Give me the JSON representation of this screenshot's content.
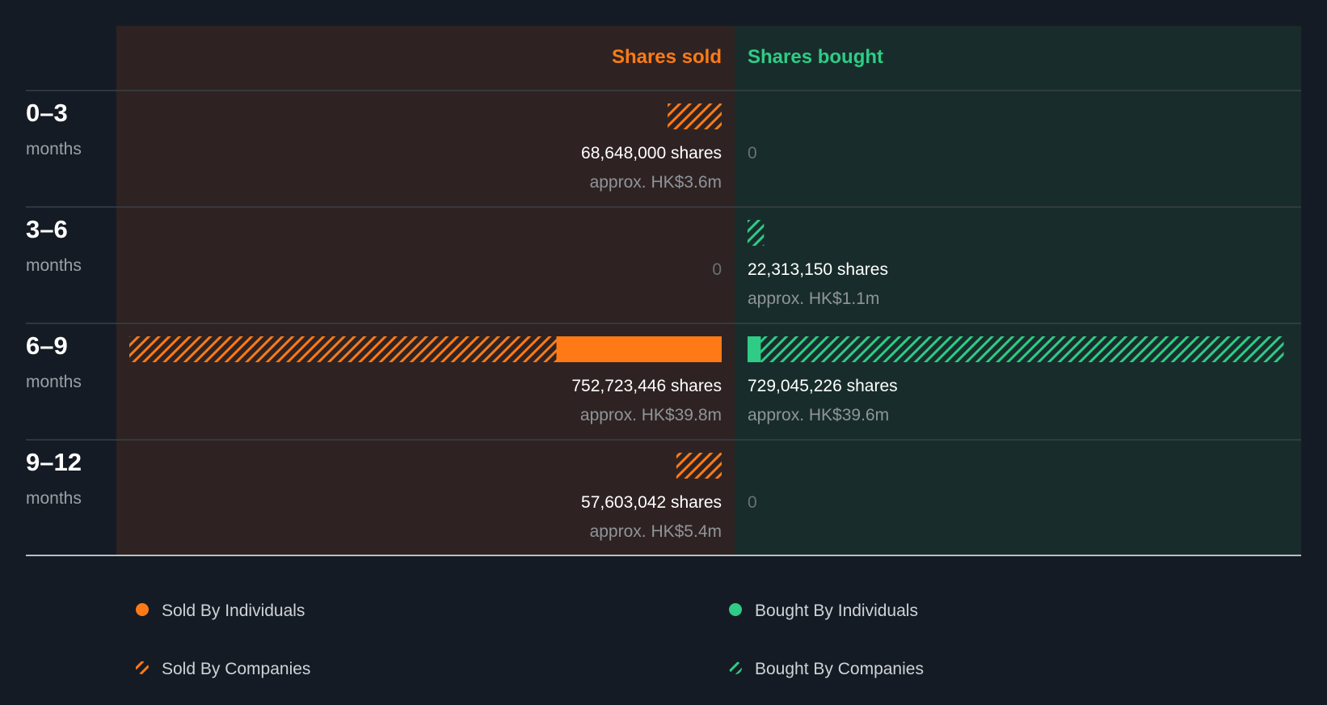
{
  "colors": {
    "background": "#151b24",
    "sold_panel": "#2e2322",
    "bought_panel": "#182d2b",
    "sold": "#ff7a16",
    "bought": "#2ecc86",
    "divider": "#3a4048",
    "baseline": "#b9bec4"
  },
  "chart_data": {
    "type": "bar",
    "layout": "diverging-horizontal",
    "headers": {
      "sold": "Shares sold",
      "bought": "Shares bought"
    },
    "categories": [
      {
        "period": "0–3",
        "unit": "months"
      },
      {
        "period": "3–6",
        "unit": "months"
      },
      {
        "period": "6–9",
        "unit": "months"
      },
      {
        "period": "9–12",
        "unit": "months"
      }
    ],
    "series": [
      {
        "name": "Sold By Individuals",
        "side": "sold",
        "pattern": "solid",
        "values": [
          0,
          0,
          210000000,
          0
        ]
      },
      {
        "name": "Sold By Companies",
        "side": "sold",
        "pattern": "hatched",
        "values": [
          68648000,
          0,
          542723446,
          57603042
        ]
      },
      {
        "name": "Bought By Individuals",
        "side": "bought",
        "pattern": "solid",
        "values": [
          0,
          0,
          18000000,
          0
        ]
      },
      {
        "name": "Bought By Companies",
        "side": "bought",
        "pattern": "hatched",
        "values": [
          0,
          22313150,
          711045226,
          0
        ]
      }
    ],
    "sold_totals": [
      {
        "shares": "68,648,000 shares",
        "approx": "approx. HK$3.6m"
      },
      {
        "shares": "0",
        "approx": ""
      },
      {
        "shares": "752,723,446 shares",
        "approx": "approx. HK$39.8m"
      },
      {
        "shares": "57,603,042 shares",
        "approx": "approx. HK$5.4m"
      }
    ],
    "bought_totals": [
      {
        "shares": "0",
        "approx": ""
      },
      {
        "shares": "22,313,150 shares",
        "approx": "approx. HK$1.1m"
      },
      {
        "shares": "729,045,226 shares",
        "approx": "approx. HK$39.6m"
      },
      {
        "shares": "0",
        "approx": ""
      }
    ],
    "scale_max": 752723446,
    "legend": [
      {
        "label": "Sold By Individuals",
        "side": "sold",
        "pattern": "solid"
      },
      {
        "label": "Bought By Individuals",
        "side": "bought",
        "pattern": "solid"
      },
      {
        "label": "Sold By Companies",
        "side": "sold",
        "pattern": "hatched"
      },
      {
        "label": "Bought By Companies",
        "side": "bought",
        "pattern": "hatched"
      }
    ],
    "legend_position": "bottom"
  }
}
